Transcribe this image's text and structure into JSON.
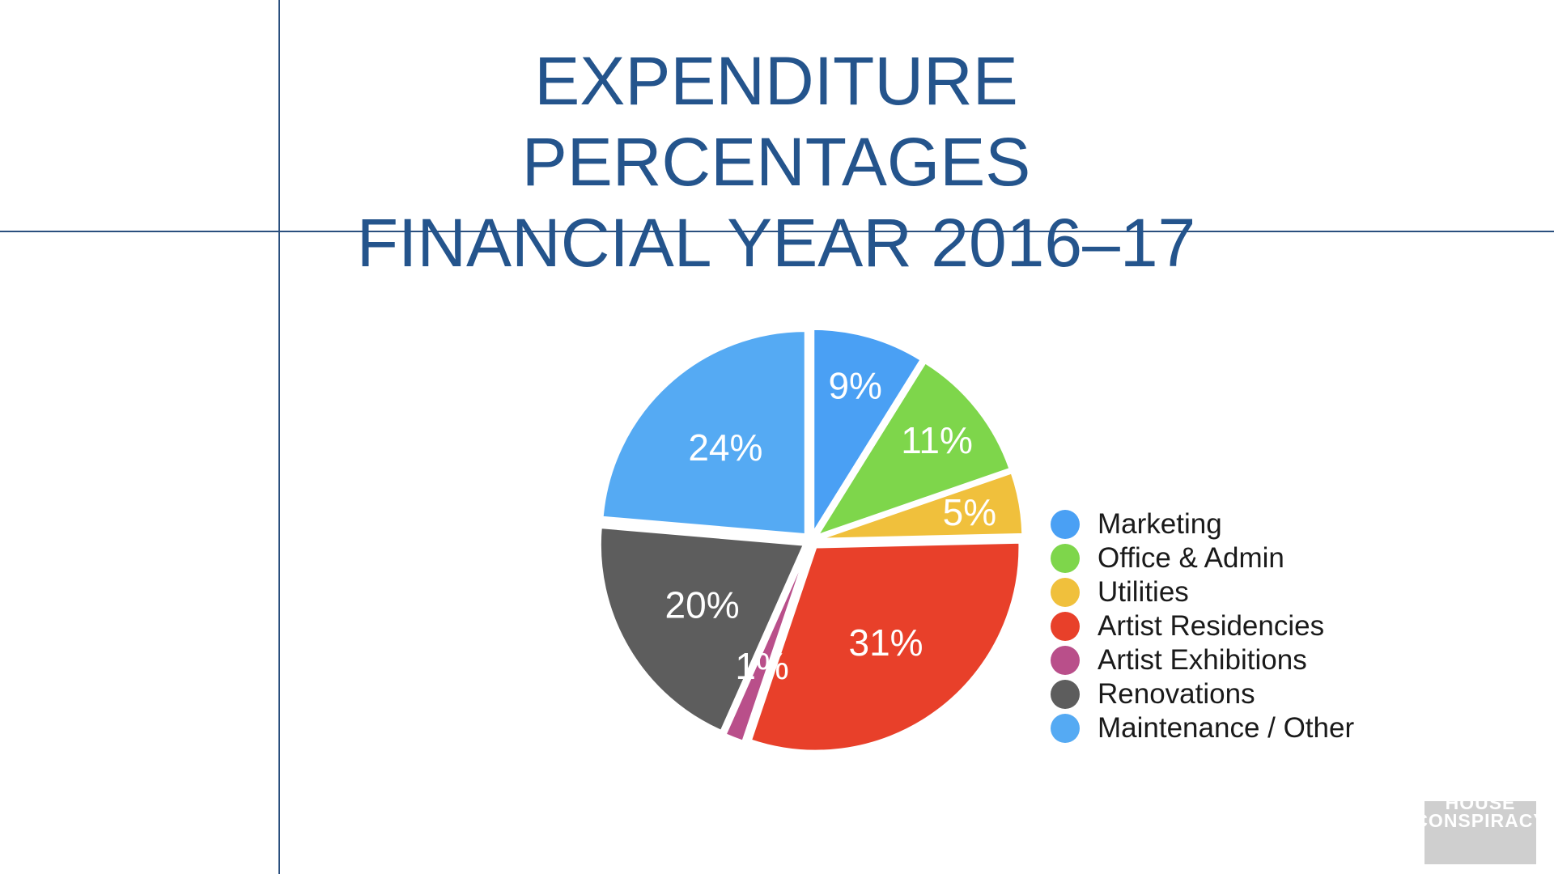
{
  "slide": {
    "title_line1": "EXPENDITURE PERCENTAGES",
    "title_line2": "FINANCIAL YEAR 2016–17"
  },
  "logo": {
    "text": "HOUSE CONSPIRACY"
  },
  "chart_data": {
    "type": "pie",
    "title": "EXPENDITURE PERCENTAGES FINANCIAL YEAR 2016–17",
    "legend_position": "right",
    "slices": [
      {
        "name": "Marketing",
        "value": 9,
        "label": "9%",
        "color": "#4aa0f4"
      },
      {
        "name": "Office & Admin",
        "value": 11,
        "label": "11%",
        "color": "#7ed64b"
      },
      {
        "name": "Utilities",
        "value": 5,
        "label": "5%",
        "color": "#f0c03c"
      },
      {
        "name": "Artist Residencies",
        "value": 31,
        "label": "31%",
        "color": "#e8402a"
      },
      {
        "name": "Artist Exhibitions",
        "value": 1.5,
        "label": "1%",
        "color": "#b94f8a"
      },
      {
        "name": "Renovations",
        "value": 20,
        "label": "20%",
        "color": "#5d5d5d"
      },
      {
        "name": "Maintenance / Other",
        "value": 24,
        "label": "24%",
        "color": "#55aaf3"
      }
    ]
  }
}
